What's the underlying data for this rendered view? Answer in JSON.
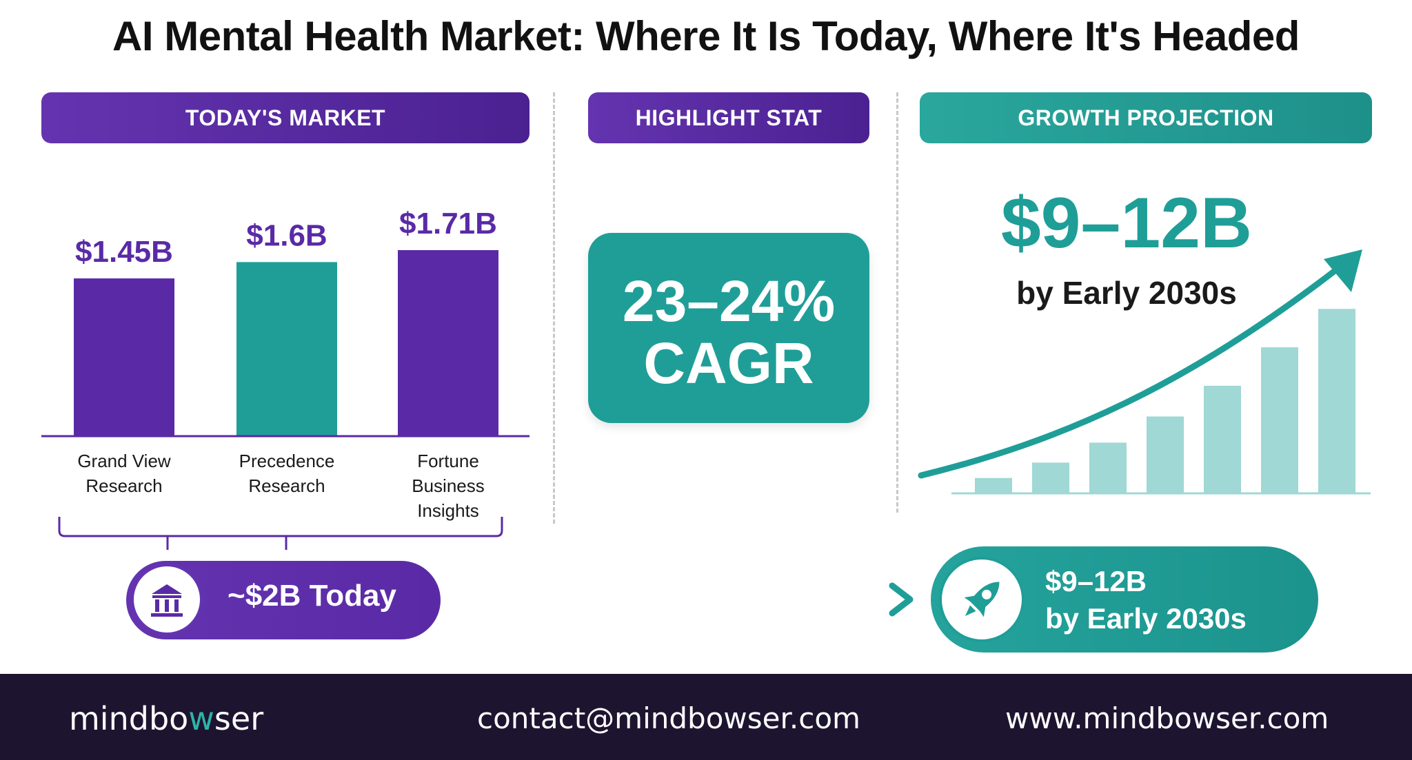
{
  "title": "AI Mental Health Market: Where It Is Today, Where It's Headed",
  "sections": {
    "today": "TODAY'S MARKET",
    "highlight": "HIGHLIGHT STAT",
    "growth": "GROWTH PROJECTION"
  },
  "colors": {
    "purple": "#5a2aa6",
    "teal": "#1f9e98",
    "light_teal": "#9fd8d4",
    "footer_bg": "#1d1530"
  },
  "chart_data": [
    {
      "type": "bar",
      "categories": [
        "Grand View\nResearch",
        "Precedence\nResearch",
        "Fortune\nBusiness\nInsights"
      ],
      "values": [
        1.45,
        1.6,
        1.71
      ],
      "value_labels": [
        "$1.45B",
        "$1.6B",
        "$1.71B"
      ],
      "bar_colors": [
        "#5a2aa6",
        "#1f9e98",
        "#5a2aa6"
      ],
      "ylim": [
        0,
        1.9
      ],
      "grid": false
    },
    {
      "type": "bar",
      "title": "$9–12B",
      "subtitle": "by Early 2030s",
      "values": [
        1,
        2,
        3.3,
        5,
        7,
        9.5,
        12
      ],
      "ylim": [
        0,
        13
      ],
      "trend_arrow": true,
      "grid": false
    }
  ],
  "highlight": {
    "value": "23–24%",
    "label": "CAGR"
  },
  "today_pill": {
    "icon": "bank-icon",
    "text": "~$2B Today"
  },
  "future_pill": {
    "icon": "rocket-icon",
    "line1": "$9–12B",
    "line2": "by Early 2030s"
  },
  "footer": {
    "logo_start": "mindbo",
    "logo_accent": "w",
    "logo_end": "ser",
    "email": "contact@mindbowser.com",
    "website": "www.mindbowser.com"
  }
}
